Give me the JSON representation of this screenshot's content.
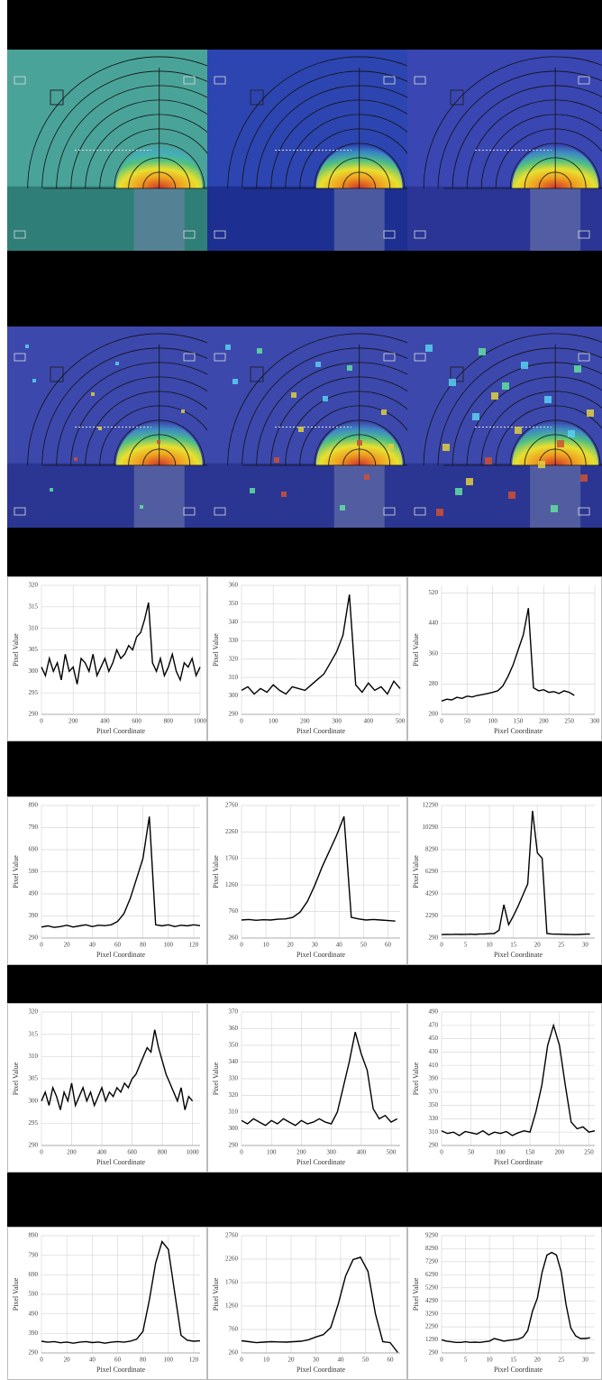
{
  "chart_data": [
    {
      "type": "line",
      "xlabel": "Pixel Coordinate",
      "ylabel": "Pixel Value",
      "color": "#000000",
      "grid": true,
      "xlim": [
        0,
        1000
      ],
      "xticks": [
        0,
        200,
        400,
        600,
        800,
        1000
      ],
      "ylim": [
        290,
        320
      ],
      "yticks": [
        290,
        295,
        300,
        305,
        310,
        315,
        320
      ],
      "x": [
        0,
        25,
        50,
        75,
        100,
        125,
        150,
        175,
        200,
        225,
        250,
        275,
        300,
        325,
        350,
        375,
        400,
        425,
        450,
        475,
        500,
        525,
        550,
        575,
        600,
        625,
        650,
        675,
        700,
        725,
        750,
        775,
        800,
        825,
        850,
        875,
        900,
        925,
        950,
        975,
        1000
      ],
      "values": [
        301,
        299,
        303,
        300,
        302,
        298,
        304,
        300,
        301,
        297,
        303,
        302,
        300,
        304,
        299,
        301,
        303,
        300,
        302,
        305,
        303,
        304,
        306,
        305,
        308,
        309,
        312,
        316,
        302,
        300,
        303,
        299,
        301,
        304,
        300,
        298,
        302,
        301,
        303,
        299,
        301
      ]
    },
    {
      "type": "line",
      "xlabel": "Pixel Coordinate",
      "ylabel": "Pixel Value",
      "color": "#000000",
      "grid": true,
      "xlim": [
        0,
        500
      ],
      "xticks": [
        0,
        100,
        200,
        300,
        400,
        500
      ],
      "ylim": [
        290,
        360
      ],
      "yticks": [
        290,
        300,
        310,
        320,
        330,
        340,
        350,
        360
      ],
      "x": [
        0,
        20,
        40,
        60,
        80,
        100,
        120,
        140,
        160,
        180,
        200,
        220,
        240,
        260,
        280,
        300,
        320,
        340,
        360,
        380,
        400,
        420,
        440,
        460,
        480,
        500
      ],
      "values": [
        303,
        305,
        301,
        304,
        302,
        306,
        303,
        301,
        305,
        304,
        303,
        306,
        309,
        312,
        318,
        324,
        333,
        355,
        306,
        302,
        307,
        303,
        305,
        301,
        308,
        304
      ]
    },
    {
      "type": "line",
      "xlabel": "Pixel Coordinate",
      "ylabel": "Pixel Value",
      "color": "#000000",
      "grid": true,
      "xlim": [
        0,
        300
      ],
      "xticks": [
        0,
        50,
        100,
        150,
        200,
        250,
        300
      ],
      "ylim": [
        200,
        540
      ],
      "yticks": [
        200,
        280,
        360,
        440,
        520
      ],
      "x": [
        0,
        10,
        20,
        30,
        40,
        50,
        60,
        70,
        80,
        90,
        100,
        110,
        120,
        130,
        140,
        150,
        160,
        170,
        180,
        190,
        200,
        210,
        220,
        230,
        240,
        250,
        260
      ],
      "values": [
        235,
        240,
        238,
        245,
        242,
        248,
        246,
        250,
        252,
        255,
        258,
        262,
        275,
        300,
        330,
        370,
        410,
        480,
        270,
        262,
        265,
        258,
        260,
        255,
        262,
        258,
        250
      ]
    },
    {
      "type": "line",
      "xlabel": "Pixel Coordinate",
      "ylabel": "Pixel Value",
      "color": "#000000",
      "grid": true,
      "xlim": [
        0,
        125
      ],
      "xticks": [
        0,
        20,
        40,
        60,
        80,
        100,
        120
      ],
      "ylim": [
        290,
        890
      ],
      "yticks": [
        290,
        390,
        490,
        590,
        690,
        790,
        890
      ],
      "x": [
        0,
        5,
        10,
        15,
        20,
        25,
        30,
        35,
        40,
        45,
        50,
        55,
        60,
        65,
        70,
        75,
        80,
        85,
        90,
        95,
        100,
        105,
        110,
        115,
        120,
        125
      ],
      "values": [
        340,
        345,
        338,
        342,
        348,
        340,
        345,
        350,
        342,
        348,
        346,
        350,
        365,
        400,
        470,
        560,
        650,
        840,
        350,
        345,
        350,
        342,
        348,
        345,
        350,
        346
      ]
    },
    {
      "type": "line",
      "xlabel": "Pixel Coordinate",
      "ylabel": "Pixel Value",
      "color": "#000000",
      "grid": true,
      "xlim": [
        0,
        65
      ],
      "xticks": [
        0,
        10,
        20,
        30,
        40,
        50,
        60
      ],
      "ylim": [
        260,
        2760
      ],
      "yticks": [
        260,
        760,
        1260,
        1760,
        2260,
        2760
      ],
      "x": [
        0,
        3,
        6,
        9,
        12,
        15,
        18,
        21,
        24,
        27,
        30,
        33,
        36,
        39,
        42,
        45,
        48,
        51,
        54,
        57,
        60,
        63
      ],
      "values": [
        600,
        610,
        595,
        605,
        600,
        615,
        620,
        650,
        750,
        950,
        1250,
        1600,
        1900,
        2200,
        2550,
        650,
        620,
        600,
        610,
        600,
        590,
        580
      ]
    },
    {
      "type": "line",
      "xlabel": "Pixel Coordinate",
      "ylabel": "Pixel Value",
      "color": "#000000",
      "grid": true,
      "xlim": [
        0,
        32
      ],
      "xticks": [
        0,
        5,
        10,
        15,
        20,
        25,
        30
      ],
      "ylim": [
        290,
        12290
      ],
      "yticks": [
        290,
        2290,
        4290,
        6290,
        8290,
        10290,
        12290
      ],
      "x": [
        0,
        1,
        2,
        3,
        4,
        5,
        6,
        7,
        8,
        9,
        10,
        11,
        12,
        13,
        14,
        15,
        16,
        17,
        18,
        19,
        20,
        21,
        22,
        23,
        24,
        25,
        26,
        27,
        28,
        29,
        30,
        31
      ],
      "values": [
        600,
        620,
        610,
        630,
        615,
        625,
        640,
        620,
        650,
        660,
        680,
        700,
        1000,
        3300,
        1500,
        2300,
        3200,
        4200,
        5200,
        11800,
        8000,
        7500,
        700,
        650,
        640,
        630,
        620,
        610,
        600,
        620,
        640,
        650
      ]
    },
    {
      "type": "line",
      "xlabel": "Pixel Coordinate",
      "ylabel": "Pixel Value",
      "color": "#000000",
      "grid": true,
      "xlim": [
        0,
        1050
      ],
      "xticks": [
        0,
        200,
        400,
        600,
        800,
        1000
      ],
      "ylim": [
        290,
        320
      ],
      "yticks": [
        290,
        295,
        300,
        305,
        310,
        315,
        320
      ],
      "x": [
        0,
        25,
        50,
        75,
        100,
        125,
        150,
        175,
        200,
        225,
        250,
        275,
        300,
        325,
        350,
        375,
        400,
        425,
        450,
        475,
        500,
        525,
        550,
        575,
        600,
        625,
        650,
        675,
        700,
        725,
        750,
        775,
        800,
        825,
        850,
        875,
        900,
        925,
        950,
        975,
        1000
      ],
      "values": [
        300,
        302,
        299,
        303,
        301,
        298,
        302,
        300,
        304,
        299,
        301,
        303,
        300,
        302,
        299,
        301,
        303,
        300,
        302,
        301,
        303,
        302,
        304,
        303,
        305,
        306,
        308,
        310,
        312,
        311,
        316,
        312,
        309,
        306,
        304,
        302,
        300,
        303,
        298,
        301,
        300
      ]
    },
    {
      "type": "line",
      "xlabel": "Pixel Coordinate",
      "ylabel": "Pixel Value",
      "color": "#000000",
      "grid": true,
      "xlim": [
        0,
        530
      ],
      "xticks": [
        0,
        100,
        200,
        300,
        400,
        500
      ],
      "ylim": [
        290,
        370
      ],
      "yticks": [
        290,
        300,
        310,
        320,
        330,
        340,
        350,
        360,
        370
      ],
      "x": [
        0,
        20,
        40,
        60,
        80,
        100,
        120,
        140,
        160,
        180,
        200,
        220,
        240,
        260,
        280,
        300,
        320,
        340,
        360,
        380,
        400,
        420,
        440,
        460,
        480,
        500,
        520
      ],
      "values": [
        305,
        303,
        306,
        304,
        302,
        305,
        303,
        306,
        304,
        302,
        305,
        303,
        304,
        306,
        304,
        303,
        310,
        325,
        340,
        358,
        345,
        335,
        312,
        306,
        308,
        304,
        306
      ]
    },
    {
      "type": "line",
      "xlabel": "Pixel Coordinate",
      "ylabel": "Pixel Value",
      "color": "#000000",
      "grid": true,
      "xlim": [
        0,
        260
      ],
      "xticks": [
        0,
        50,
        100,
        150,
        200,
        250
      ],
      "ylim": [
        290,
        490
      ],
      "yticks": [
        290,
        310,
        330,
        350,
        370,
        390,
        410,
        430,
        450,
        470,
        490
      ],
      "x": [
        0,
        10,
        20,
        30,
        40,
        50,
        60,
        70,
        80,
        90,
        100,
        110,
        120,
        130,
        140,
        150,
        160,
        170,
        180,
        190,
        200,
        210,
        220,
        230,
        240,
        250,
        260
      ],
      "values": [
        312,
        308,
        310,
        305,
        311,
        309,
        307,
        312,
        306,
        310,
        308,
        311,
        305,
        309,
        312,
        310,
        340,
        380,
        440,
        470,
        440,
        380,
        325,
        315,
        318,
        310,
        312
      ]
    },
    {
      "type": "line",
      "xlabel": "Pixel Coordinate",
      "ylabel": "Pixel Value",
      "color": "#000000",
      "grid": true,
      "xlim": [
        0,
        125
      ],
      "xticks": [
        0,
        20,
        40,
        60,
        80,
        100,
        120
      ],
      "ylim": [
        290,
        890
      ],
      "yticks": [
        290,
        390,
        490,
        590,
        690,
        790,
        890
      ],
      "x": [
        0,
        5,
        10,
        15,
        20,
        25,
        30,
        35,
        40,
        45,
        50,
        55,
        60,
        65,
        70,
        75,
        80,
        85,
        90,
        95,
        100,
        105,
        110,
        115,
        120,
        125
      ],
      "values": [
        350,
        345,
        348,
        342,
        346,
        340,
        345,
        348,
        343,
        346,
        340,
        345,
        348,
        345,
        350,
        360,
        400,
        560,
        750,
        860,
        820,
        600,
        380,
        355,
        350,
        352
      ]
    },
    {
      "type": "line",
      "xlabel": "Pixel Coordinate",
      "ylabel": "Pixel Value",
      "color": "#000000",
      "grid": true,
      "xlim": [
        0,
        64
      ],
      "xticks": [
        0,
        10,
        20,
        30,
        40,
        50,
        60
      ],
      "ylim": [
        260,
        2760
      ],
      "yticks": [
        260,
        760,
        1260,
        1760,
        2260,
        2760
      ],
      "x": [
        0,
        3,
        6,
        9,
        12,
        15,
        18,
        21,
        24,
        27,
        30,
        33,
        36,
        39,
        42,
        45,
        48,
        51,
        54,
        57,
        60,
        63
      ],
      "values": [
        520,
        500,
        480,
        490,
        500,
        495,
        490,
        500,
        510,
        540,
        600,
        650,
        800,
        1300,
        1900,
        2250,
        2300,
        2000,
        1100,
        500,
        480,
        270
      ]
    },
    {
      "type": "line",
      "xlabel": "Pixel Coordinate",
      "ylabel": "Pixel Value",
      "color": "#000000",
      "grid": true,
      "xlim": [
        0,
        32
      ],
      "xticks": [
        0,
        5,
        10,
        15,
        20,
        25,
        30
      ],
      "ylim": [
        290,
        9290
      ],
      "yticks": [
        290,
        1290,
        2290,
        3290,
        4290,
        5290,
        6290,
        7290,
        8290,
        9290
      ],
      "x": [
        0,
        1,
        2,
        3,
        4,
        5,
        6,
        7,
        8,
        9,
        10,
        11,
        12,
        13,
        14,
        15,
        16,
        17,
        18,
        19,
        20,
        21,
        22,
        23,
        24,
        25,
        26,
        27,
        28,
        29,
        30,
        31
      ],
      "values": [
        1300,
        1200,
        1150,
        1100,
        1100,
        1150,
        1100,
        1120,
        1100,
        1150,
        1200,
        1400,
        1300,
        1200,
        1250,
        1300,
        1350,
        1500,
        2000,
        3500,
        4500,
        6500,
        7800,
        8000,
        7800,
        6500,
        4000,
        2200,
        1600,
        1400,
        1400,
        1450
      ]
    }
  ]
}
